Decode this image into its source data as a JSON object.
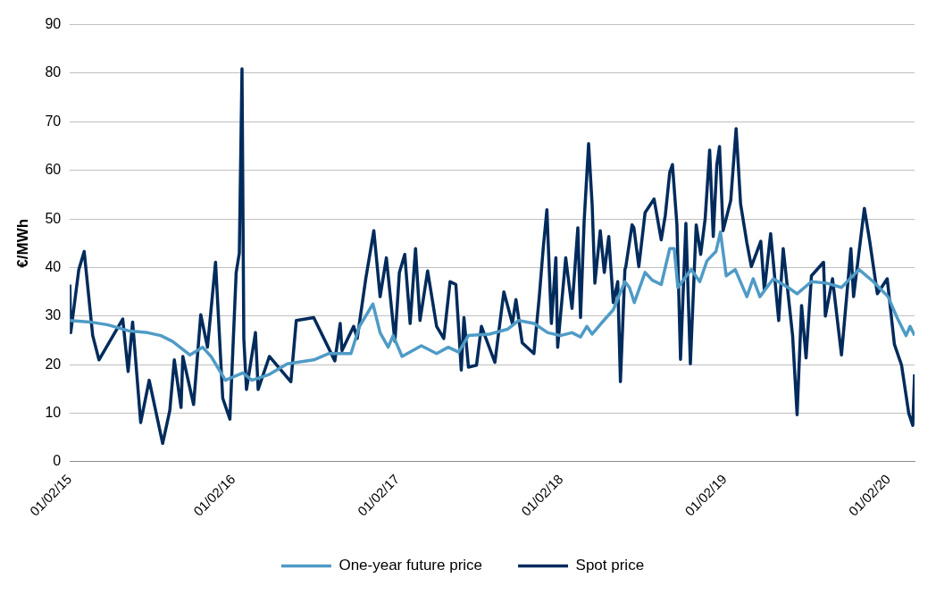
{
  "chart_data": {
    "type": "line",
    "ylabel": "€/MWh",
    "xlim": [
      "2015-02-01",
      "2020-03-30"
    ],
    "xticks": [
      {
        "value": "2015-02-01",
        "label": "01/02/15"
      },
      {
        "value": "2016-02-01",
        "label": "01/02/16"
      },
      {
        "value": "2017-02-01",
        "label": "01/02/17"
      },
      {
        "value": "2018-02-01",
        "label": "01/02/18"
      },
      {
        "value": "2019-02-01",
        "label": "01/02/19"
      },
      {
        "value": "2020-02-01",
        "label": "01/02/20"
      }
    ],
    "ylim": [
      0,
      90
    ],
    "yticks": [
      0,
      10,
      20,
      30,
      40,
      50,
      60,
      70,
      80,
      90
    ],
    "grid": "y",
    "legend": "bottom",
    "marker": "none",
    "line_style": "solid",
    "series": [
      {
        "name": "One-year future price",
        "color": "#4f9bc6",
        "x": [
          "2015-02-01",
          "2015-03-18",
          "2015-04-27",
          "2015-06-11",
          "2015-07-24",
          "2015-08-23",
          "2015-09-18",
          "2015-10-27",
          "2015-11-24",
          "2015-12-13",
          "2016-01-14",
          "2016-02-22",
          "2016-03-13",
          "2016-04-21",
          "2016-05-31",
          "2016-07-29",
          "2016-09-01",
          "2016-10-20",
          "2016-11-08",
          "2016-12-08",
          "2016-12-24",
          "2017-01-11",
          "2017-01-22",
          "2017-02-11",
          "2017-03-26",
          "2017-04-29",
          "2017-05-25",
          "2017-06-17",
          "2017-07-09",
          "2017-08-25",
          "2017-10-04",
          "2017-10-29",
          "2017-12-02",
          "2018-01-02",
          "2018-01-30",
          "2018-02-25",
          "2018-03-16",
          "2018-03-30",
          "2018-04-11",
          "2018-05-01",
          "2018-05-28",
          "2018-06-23",
          "2018-07-03",
          "2018-07-14",
          "2018-08-07",
          "2018-08-23",
          "2018-09-12",
          "2018-10-01",
          "2018-10-11",
          "2018-10-19",
          "2018-11-18",
          "2018-12-07",
          "2018-12-23",
          "2019-01-12",
          "2019-01-22",
          "2019-02-04",
          "2019-02-24",
          "2019-03-22",
          "2019-04-05",
          "2019-04-20",
          "2019-05-20",
          "2019-06-22",
          "2019-07-12",
          "2019-08-13",
          "2019-09-15",
          "2019-10-19",
          "2019-11-27",
          "2019-12-29",
          "2020-01-31",
          "2020-02-20",
          "2020-03-11",
          "2020-03-20",
          "2020-03-30"
        ],
        "values": [
          29.1,
          28.8,
          28.2,
          27,
          26.6,
          26,
          24.8,
          22,
          23.6,
          21.7,
          16.8,
          18.3,
          16.8,
          18,
          20.2,
          21,
          22.3,
          22.3,
          27.9,
          32.5,
          26.6,
          23.6,
          26,
          21.7,
          23.9,
          22.3,
          23.6,
          22.6,
          26,
          26.3,
          27.3,
          29.1,
          28.5,
          26.6,
          26,
          26.6,
          25.7,
          27.9,
          26.3,
          28.5,
          31.3,
          37.1,
          35.9,
          32.8,
          39,
          37.4,
          36.5,
          43.9,
          43.9,
          35.9,
          39.6,
          37.1,
          41.4,
          43.3,
          47.3,
          38.3,
          39.6,
          34,
          37.7,
          34,
          37.7,
          35.9,
          34.6,
          37.1,
          36.8,
          35.9,
          39.6,
          37.1,
          34,
          29.7,
          26,
          27.9,
          26
        ]
      },
      {
        "name": "Spot price",
        "color": "#002b5c",
        "x": [
          "2015-02-01",
          "2015-02-03",
          "2015-02-21",
          "2015-03-05",
          "2015-03-24",
          "2015-04-07",
          "2015-05-30",
          "2015-06-11",
          "2015-06-21",
          "2015-07-09",
          "2015-07-28",
          "2015-08-27",
          "2015-09-12",
          "2015-09-22",
          "2015-10-07",
          "2015-10-11",
          "2015-11-04",
          "2015-11-20",
          "2015-12-05",
          "2015-12-23",
          "2016-01-08",
          "2016-01-24",
          "2016-02-07",
          "2016-02-14",
          "2016-02-20",
          "2016-02-24",
          "2016-03-01",
          "2016-03-21",
          "2016-03-27",
          "2016-04-21",
          "2016-06-08",
          "2016-06-20",
          "2016-07-29",
          "2016-09-14",
          "2016-09-26",
          "2016-09-30",
          "2016-10-26",
          "2016-11-03",
          "2016-11-22",
          "2016-12-10",
          "2016-12-24",
          "2017-01-07",
          "2017-01-26",
          "2017-02-05",
          "2017-02-17",
          "2017-03-01",
          "2017-03-13",
          "2017-03-23",
          "2017-04-09",
          "2017-04-29",
          "2017-05-15",
          "2017-05-29",
          "2017-06-11",
          "2017-06-23",
          "2017-06-29",
          "2017-07-09",
          "2017-07-27",
          "2017-08-07",
          "2017-09-06",
          "2017-09-26",
          "2017-10-15",
          "2017-10-23",
          "2017-11-06",
          "2017-12-02",
          "2017-12-14",
          "2017-12-23",
          "2017-12-31",
          "2018-01-10",
          "2018-01-20",
          "2018-01-24",
          "2018-02-11",
          "2018-02-25",
          "2018-03-10",
          "2018-03-16",
          "2018-03-24",
          "2018-04-03",
          "2018-04-11",
          "2018-04-17",
          "2018-04-29",
          "2018-05-08",
          "2018-05-18",
          "2018-05-28",
          "2018-06-07",
          "2018-06-13",
          "2018-06-23",
          "2018-06-25",
          "2018-07-09",
          "2018-07-13",
          "2018-07-24",
          "2018-08-07",
          "2018-08-27",
          "2018-09-12",
          "2018-09-21",
          "2018-10-01",
          "2018-10-07",
          "2018-10-17",
          "2018-10-25",
          "2018-11-06",
          "2018-11-16",
          "2018-11-29",
          "2018-12-09",
          "2018-12-19",
          "2018-12-29",
          "2019-01-06",
          "2019-01-14",
          "2019-01-20",
          "2019-01-28",
          "2019-02-14",
          "2019-02-26",
          "2019-03-08",
          "2019-03-22",
          "2019-04-01",
          "2019-04-22",
          "2019-04-30",
          "2019-05-14",
          "2019-06-01",
          "2019-06-11",
          "2019-07-02",
          "2019-07-12",
          "2019-07-22",
          "2019-08-01",
          "2019-08-13",
          "2019-09-09",
          "2019-09-13",
          "2019-09-29",
          "2019-10-19",
          "2019-11-09",
          "2019-11-15",
          "2019-12-09",
          "2019-12-21",
          "2020-01-07",
          "2020-01-29",
          "2020-02-14",
          "2020-03-01",
          "2020-03-17",
          "2020-03-26",
          "2020-03-30"
        ],
        "values": [
          36.5,
          26.6,
          39.6,
          43.3,
          26,
          21,
          29.4,
          18.6,
          28.8,
          8.1,
          16.8,
          3.8,
          10.6,
          21,
          11.2,
          21.7,
          11.8,
          30.3,
          23.6,
          41.1,
          13.1,
          8.8,
          39,
          43,
          80.9,
          25.4,
          14.9,
          26.6,
          14.9,
          21.7,
          16.5,
          29.1,
          29.7,
          20.8,
          28.5,
          22.9,
          27.9,
          25.4,
          37.7,
          47.6,
          34,
          42,
          24.8,
          39,
          42.7,
          28.5,
          43.9,
          29.1,
          39.3,
          27.9,
          25.4,
          37.1,
          36.5,
          18.9,
          29.7,
          19.5,
          19.9,
          27.9,
          20.5,
          35,
          28.5,
          33.4,
          24.5,
          22.3,
          34,
          44.2,
          51.9,
          28.5,
          42,
          23.6,
          42,
          31.6,
          48.2,
          29.7,
          49.4,
          65.5,
          52.8,
          36.8,
          47.6,
          39,
          46.4,
          32.8,
          37.1,
          16.5,
          39.6,
          40.2,
          48.8,
          48.2,
          40.2,
          51.3,
          54.1,
          45.7,
          50.7,
          59.6,
          61.2,
          48.8,
          21.1,
          49.1,
          20.2,
          48.8,
          42.7,
          50.1,
          64.2,
          46.4,
          61.2,
          64.9,
          47.6,
          53.8,
          68.6,
          53.1,
          45.1,
          40.2,
          45.4,
          35.3,
          47,
          29.1,
          43.9,
          26,
          9.7,
          32.2,
          21.4,
          38.3,
          41.1,
          30,
          37.7,
          22,
          43.9,
          34,
          52.2,
          45.4,
          34.6,
          37.7,
          24.2,
          19.9,
          10,
          7.5,
          18
        ]
      }
    ]
  }
}
